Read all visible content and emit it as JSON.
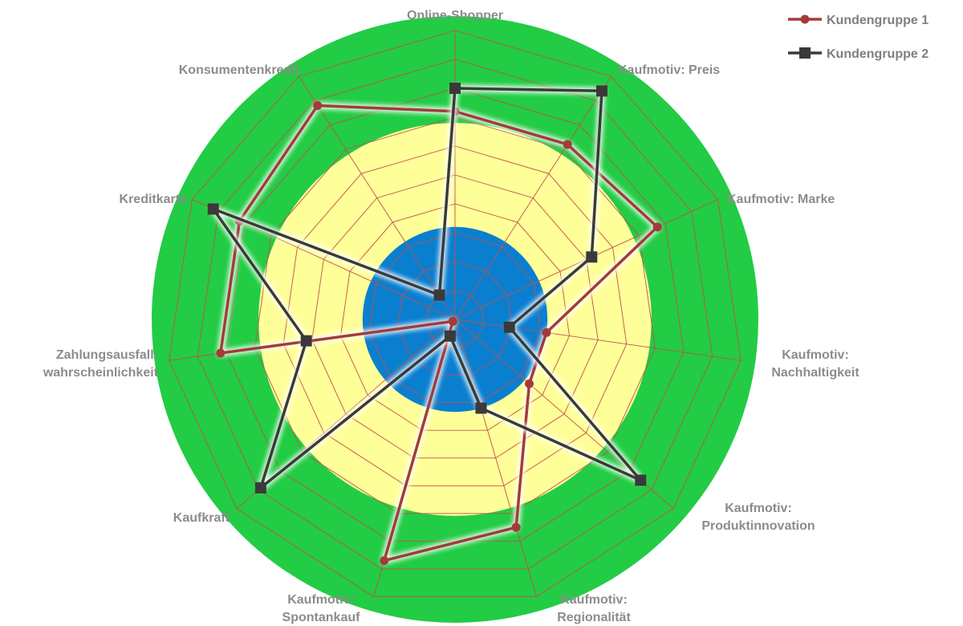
{
  "chart_data": {
    "type": "radar",
    "title": "",
    "axes": [
      [
        "Online-Shopper"
      ],
      [
        "Kaufmotiv: Preis"
      ],
      [
        "Kaufmotiv: Marke"
      ],
      [
        "Kaufmotiv:",
        "Nachhaltigkeit"
      ],
      [
        "Kaufmotiv:",
        "Produktinnovation"
      ],
      [
        "Kaufmotiv:",
        "Regionalität"
      ],
      [
        "Kaufmotiv:",
        "Spontankauf"
      ],
      [
        "Kaufkraft"
      ],
      [
        "Zahlungsausfall-",
        "wahrscheinlichkeit"
      ],
      [
        "Kreditkarte"
      ],
      [
        "Konsumentenkredit"
      ]
    ],
    "rmax": 10,
    "grid_rings": 10,
    "bands": [
      {
        "from": 0,
        "to": 3.2,
        "color": "#0a7fd0"
      },
      {
        "from": 3.2,
        "to": 6.8,
        "color": "#ffff99"
      },
      {
        "from": 6.8,
        "to": 10,
        "color": "#22cc44"
      }
    ],
    "grid_color": "#c0504d",
    "series": [
      {
        "name": "Kundengruppe 1",
        "color": "#a33b3b",
        "marker": "circle",
        "values": [
          7.2,
          7.2,
          7.7,
          3.2,
          3.4,
          7.5,
          8.7,
          0.1,
          8.2,
          8.2,
          8.8
        ]
      },
      {
        "name": "Kundengruppe 2",
        "color": "#3a3a3a",
        "marker": "square",
        "values": [
          8.0,
          9.4,
          5.2,
          1.9,
          8.5,
          3.2,
          0.6,
          8.9,
          5.2,
          9.2,
          1.0
        ]
      }
    ]
  }
}
